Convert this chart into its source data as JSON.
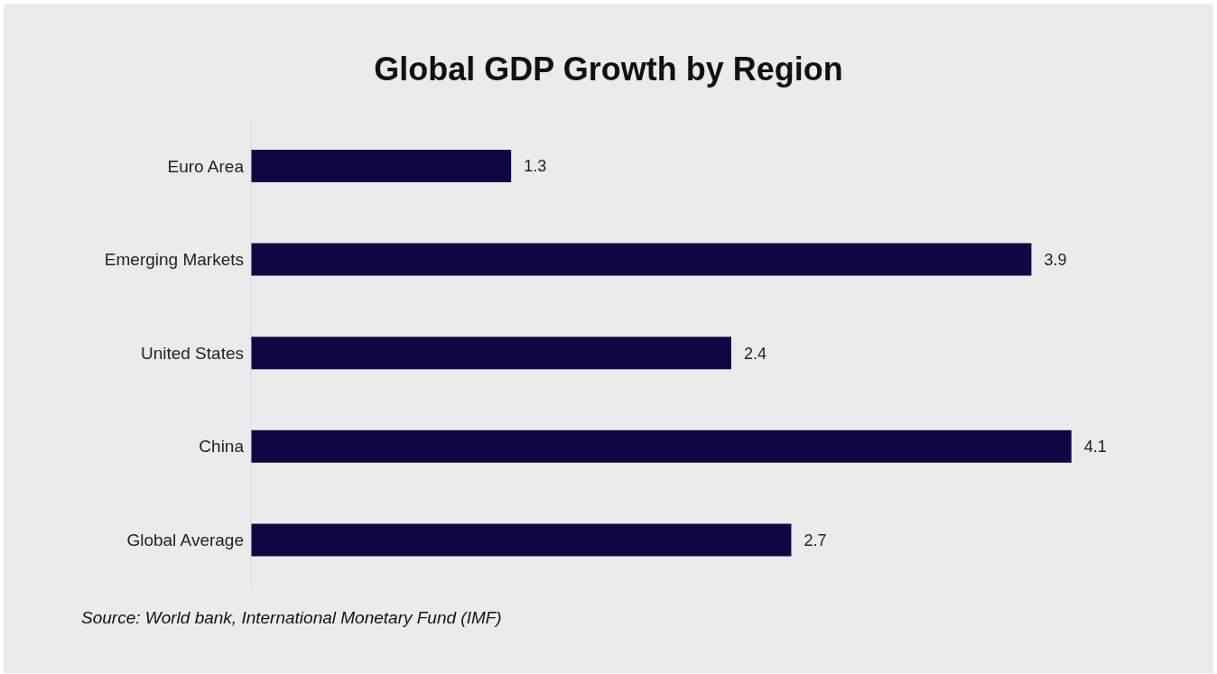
{
  "chart_data": {
    "type": "bar",
    "orientation": "horizontal",
    "title": "Global GDP Growth by Region",
    "categories": [
      "Euro Area",
      "Emerging Markets",
      "United States",
      "China",
      "Global Average"
    ],
    "values": [
      1.3,
      3.9,
      2.4,
      4.1,
      2.7
    ],
    "color": "#0f0744",
    "data_labels": true,
    "grid": false,
    "annotations": [
      "Source: World bank, International Monetary Fund (IMF)"
    ]
  }
}
